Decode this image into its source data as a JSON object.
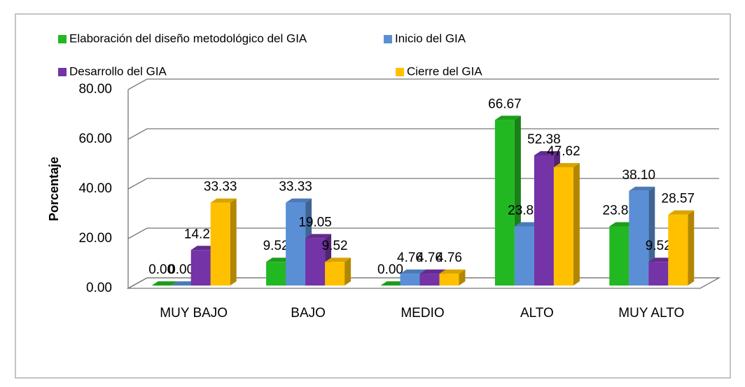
{
  "chart_data": {
    "type": "bar3d",
    "y_label": "Porcentaje",
    "categories": [
      "MUY BAJO",
      "BAJO",
      "MEDIO",
      "ALTO",
      "MUY ALTO"
    ],
    "series": [
      {
        "name": "Elaboración del diseño metodológico del GIA",
        "color": "#22b822",
        "values": [
          0.0,
          9.52,
          0.0,
          66.67,
          23.81
        ],
        "value_labels": [
          "0.00",
          "9.52",
          "0.00",
          "66.67",
          "23.81"
        ]
      },
      {
        "name": "Inicio del GIA",
        "color": "#5a8fd6",
        "values": [
          0.0,
          33.33,
          4.76,
          23.81,
          38.1
        ],
        "value_labels": [
          "0.00",
          "33.33",
          "4.76",
          "23.81",
          "38.10"
        ]
      },
      {
        "name": "Desarrollo del GIA",
        "color": "#7433a6",
        "values": [
          14.29,
          19.05,
          4.76,
          52.38,
          9.52
        ],
        "value_labels": [
          "14.29",
          "19.05",
          "4.76",
          "52.38",
          "9.52"
        ]
      },
      {
        "name": "Cierre del GIA",
        "color": "#ffc000",
        "values": [
          33.33,
          9.52,
          4.76,
          47.62,
          28.57
        ],
        "value_labels": [
          "33.33",
          "9.52",
          "4.76",
          "47.62",
          "28.57"
        ]
      }
    ],
    "ylim": [
      0,
      80
    ],
    "yticks": [
      {
        "value": 0,
        "label": "0.00"
      },
      {
        "value": 20,
        "label": "20.00"
      },
      {
        "value": 40,
        "label": "40.00"
      },
      {
        "value": 60,
        "label": "60.00"
      },
      {
        "value": 80,
        "label": "80.00"
      }
    ],
    "grid": true,
    "legend": "top"
  }
}
